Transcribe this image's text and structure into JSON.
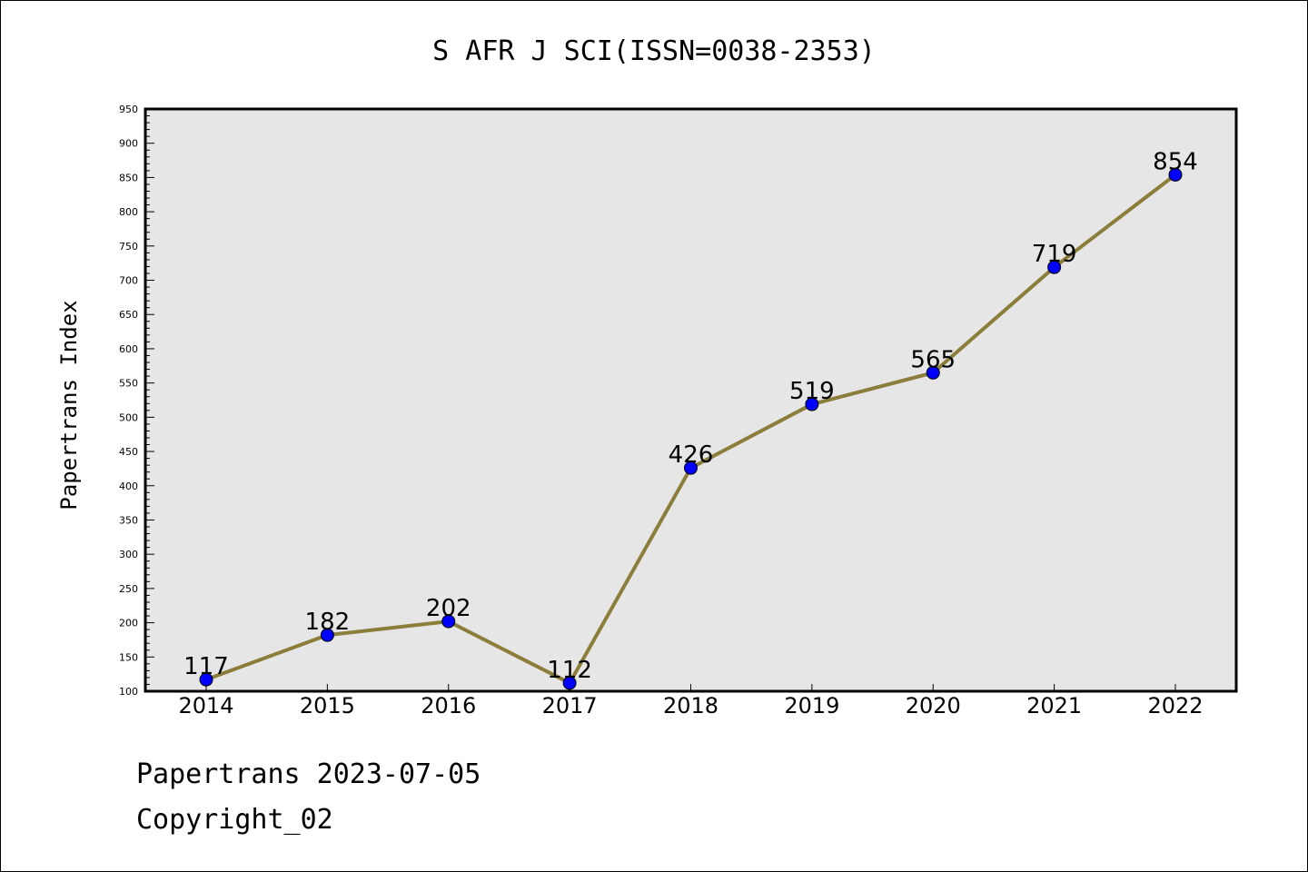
{
  "chart_data": {
    "type": "line",
    "title": "S AFR J SCI(ISSN=0038-2353)",
    "xlabel": "",
    "ylabel": "Papertrans Index",
    "categories": [
      "2014",
      "2015",
      "2016",
      "2017",
      "2018",
      "2019",
      "2020",
      "2021",
      "2022"
    ],
    "series": [
      {
        "values": [
          117,
          182,
          202,
          112,
          426,
          519,
          565,
          719,
          854
        ]
      }
    ],
    "data_labels": [
      "117",
      "182",
      "202",
      "112",
      "426",
      "519",
      "565",
      "719",
      "854"
    ],
    "ylim": [
      100,
      950
    ],
    "yticks": [
      100,
      150,
      200,
      250,
      300,
      350,
      400,
      450,
      500,
      550,
      600,
      650,
      700,
      750,
      800,
      850,
      900,
      950
    ],
    "grid": false,
    "colors": {
      "line": "#8B7D3A",
      "marker": "#0000FF",
      "plot_bg": "#E6E6E6"
    }
  },
  "footer": {
    "line1": "Papertrans 2023-07-05",
    "line2": "Copyright_02"
  }
}
